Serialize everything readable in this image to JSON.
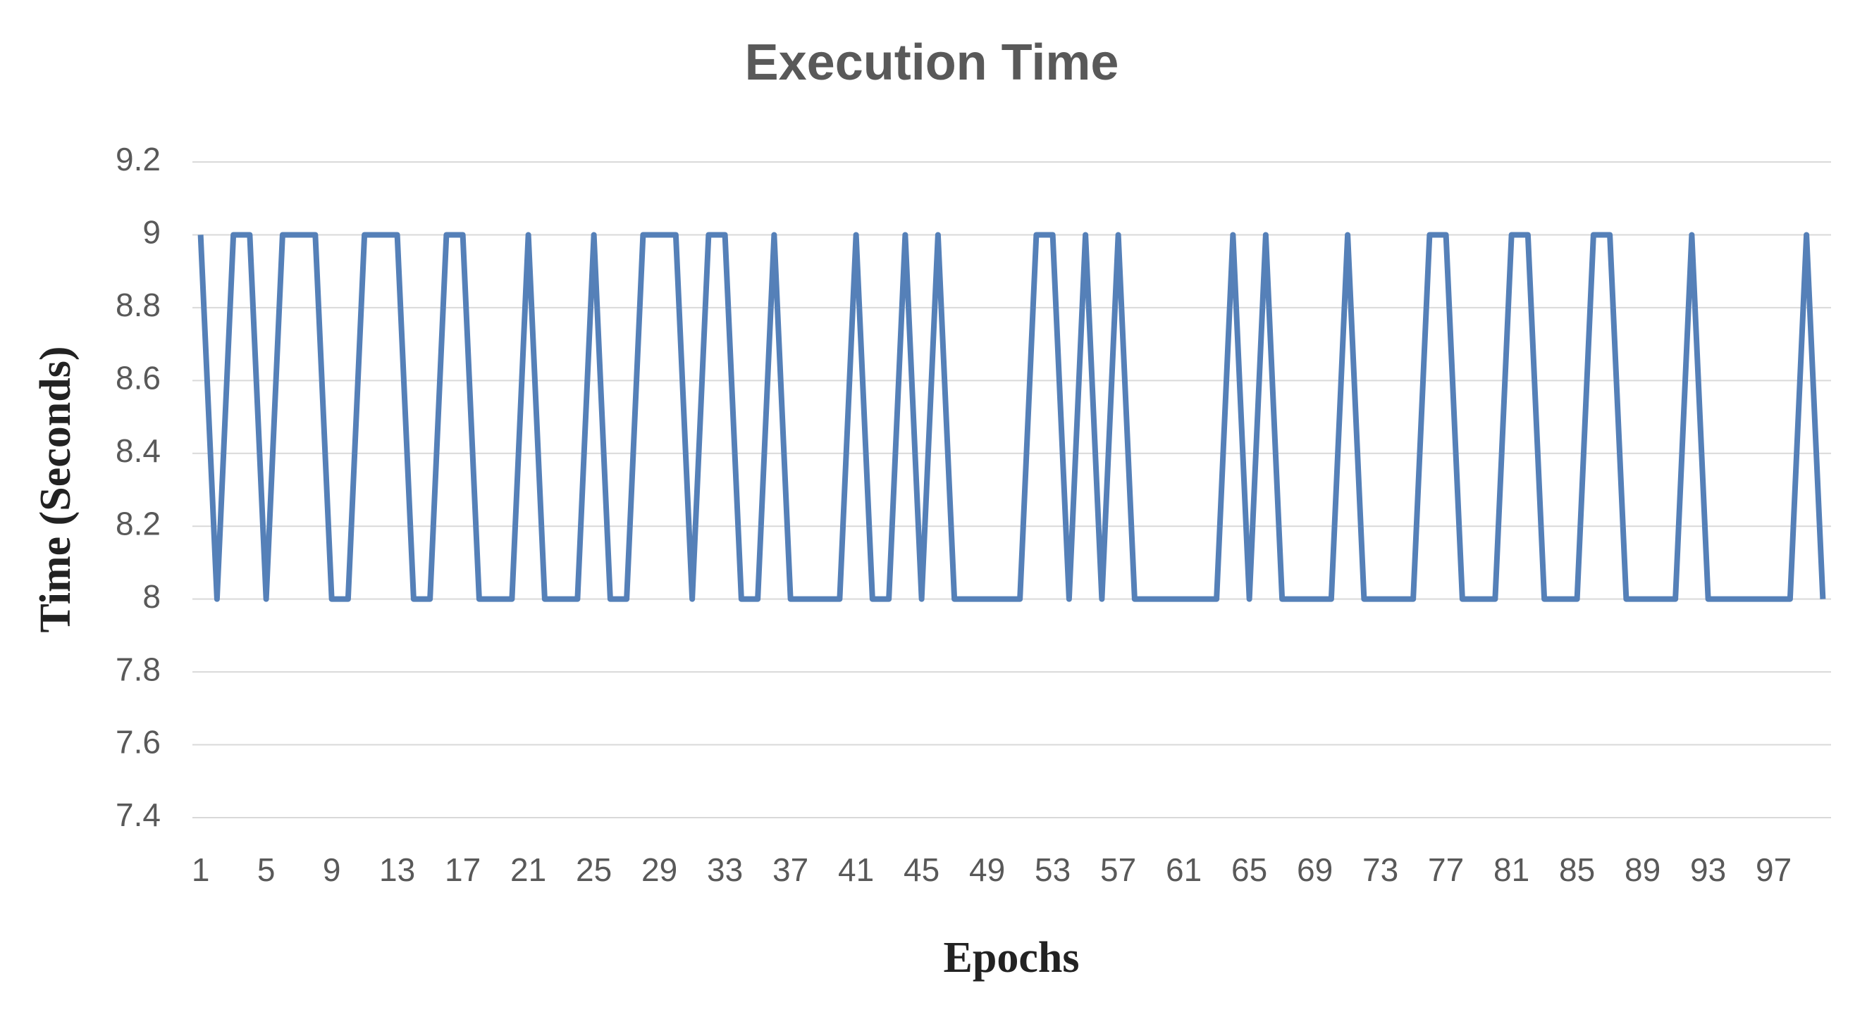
{
  "chart_data": {
    "type": "line",
    "title": "Execution Time",
    "x_label": "Epochs",
    "y_label": "Time (Seconds)",
    "categories": [
      "1",
      null,
      null,
      null,
      "5",
      null,
      null,
      null,
      "9",
      null,
      null,
      null,
      "13",
      null,
      null,
      null,
      "17",
      null,
      null,
      null,
      "21",
      null,
      null,
      null,
      "25",
      null,
      null,
      null,
      "29",
      null,
      null,
      null,
      "33",
      null,
      null,
      null,
      "37",
      null,
      null,
      null,
      "41",
      null,
      null,
      null,
      "45",
      null,
      null,
      null,
      "49",
      null,
      null,
      null,
      "53",
      null,
      null,
      null,
      "57",
      null,
      null,
      null,
      "61",
      null,
      null,
      null,
      "65",
      null,
      null,
      null,
      "69",
      null,
      null,
      null,
      "73",
      null,
      null,
      null,
      "77",
      null,
      null,
      null,
      "81",
      null,
      null,
      null,
      "85",
      null,
      null,
      null,
      "89",
      null,
      null,
      null,
      "93",
      null,
      null,
      null,
      "97",
      null,
      null,
      null
    ],
    "values": [
      9,
      8,
      9,
      9,
      8,
      9,
      9,
      9,
      8,
      8,
      9,
      9,
      9,
      8,
      8,
      9,
      9,
      8,
      8,
      8,
      9,
      8,
      8,
      8,
      9,
      8,
      8,
      9,
      9,
      9,
      8,
      9,
      9,
      8,
      8,
      9,
      8,
      8,
      8,
      8,
      9,
      8,
      8,
      9,
      8,
      9,
      8,
      8,
      8,
      8,
      8,
      9,
      9,
      8,
      9,
      8,
      9,
      8,
      8,
      8,
      8,
      8,
      8,
      9,
      8,
      9,
      8,
      8,
      8,
      8,
      9,
      8,
      8,
      8,
      8,
      9,
      9,
      8,
      8,
      8,
      9,
      9,
      8,
      8,
      8,
      9,
      9,
      8,
      8,
      8,
      8,
      9,
      8,
      8,
      8,
      8,
      8,
      8,
      9,
      8
    ],
    "color": "#5580b8",
    "ylim": [
      7.4,
      9.2
    ],
    "yticks": [
      7.4,
      7.6,
      7.8,
      8,
      8.2,
      8.4,
      8.6,
      8.8,
      9,
      9.2
    ],
    "grid": true
  }
}
